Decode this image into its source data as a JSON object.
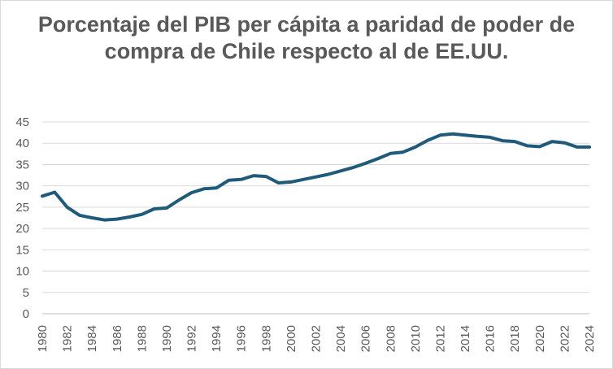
{
  "chart_data": {
    "type": "line",
    "title": "Porcentaje del PIB per cápita a paridad de poder de compra de Chile respecto al de EE.UU.",
    "xlabel": "",
    "ylabel": "",
    "ylim": [
      0,
      45
    ],
    "yticks": [
      "0",
      "5",
      "10",
      "15",
      "20",
      "25",
      "30",
      "35",
      "40",
      "45"
    ],
    "xticks": [
      "1980",
      "1982",
      "1984",
      "1986",
      "1988",
      "1990",
      "1992",
      "1994",
      "1996",
      "1998",
      "2000",
      "2002",
      "2004",
      "2006",
      "2008",
      "2010",
      "2012",
      "2014",
      "2016",
      "2018",
      "2020",
      "2022",
      "2024"
    ],
    "grid": true,
    "legend": "none",
    "color": "#1f5a7a",
    "series": [
      {
        "x": [
          1980,
          1981,
          1982,
          1983,
          1984,
          1985,
          1986,
          1987,
          1988,
          1989,
          1990,
          1991,
          1992,
          1993,
          1994,
          1995,
          1996,
          1997,
          1998,
          1999,
          2000,
          2001,
          2002,
          2003,
          2004,
          2005,
          2006,
          2007,
          2008,
          2009,
          2010,
          2011,
          2012,
          2013,
          2014,
          2015,
          2016,
          2017,
          2018,
          2019,
          2020,
          2021,
          2022,
          2023,
          2024
        ],
        "values": [
          27.6,
          28.5,
          25.0,
          23.1,
          22.5,
          22.0,
          22.2,
          22.7,
          23.3,
          24.6,
          24.8,
          26.7,
          28.4,
          29.3,
          29.5,
          31.3,
          31.5,
          32.4,
          32.2,
          30.7,
          30.9,
          31.5,
          32.1,
          32.7,
          33.5,
          34.3,
          35.3,
          36.4,
          37.6,
          37.9,
          39.1,
          40.7,
          41.9,
          42.2,
          41.9,
          41.6,
          41.4,
          40.6,
          40.4,
          39.4,
          39.2,
          40.4,
          40.1,
          39.1,
          39.1
        ]
      }
    ]
  }
}
